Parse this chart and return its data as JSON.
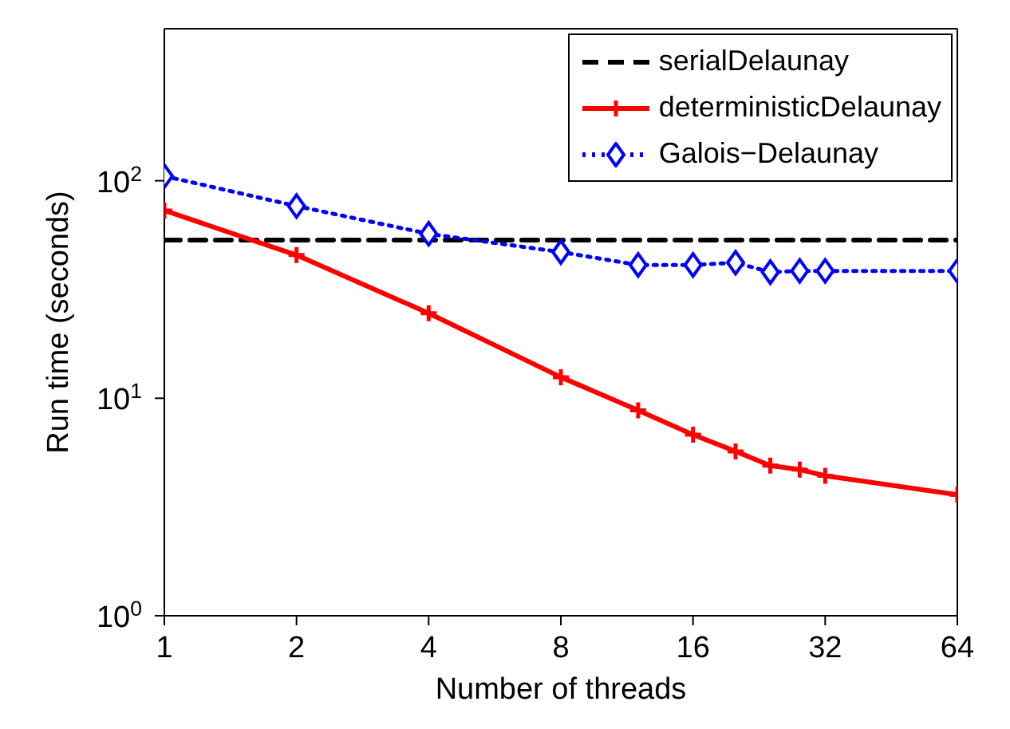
{
  "chart_data": {
    "type": "line",
    "xlabel": "Number of threads",
    "ylabel": "Run time (seconds)",
    "log": "xy",
    "legend": "top right",
    "xlim": [
      1,
      64
    ],
    "xticks": [
      1,
      2,
      4,
      8,
      16,
      32,
      64
    ],
    "ylim": [
      1,
      500
    ],
    "yticks": [
      {
        "value": 1,
        "label": "10$^{0}$"
      },
      {
        "value": 10,
        "label": "10$^{1}$"
      },
      {
        "value": 100,
        "label": "10$^{2}$"
      }
    ],
    "series": [
      {
        "name": "serialDelaunay",
        "color": "#000000",
        "x": [
          1,
          64
        ],
        "values": [
          53.4,
          53.4
        ],
        "line_style": "dashed",
        "marker": "none"
      },
      {
        "name": "deterministicDelaunay",
        "color": "#ff0000",
        "x": [
          1,
          2,
          4,
          8,
          12,
          16,
          20,
          24,
          28,
          32,
          64
        ],
        "values": [
          73,
          45.5,
          24.6,
          12.5,
          8.8,
          6.8,
          5.7,
          4.9,
          4.7,
          4.4,
          3.6
        ],
        "line_style": "solid",
        "marker": "cross"
      },
      {
        "name": "Galois−Delaunay",
        "color": "#0000ff",
        "x": [
          1,
          2,
          4,
          8,
          12,
          16,
          20,
          24,
          28,
          32,
          64
        ],
        "values": [
          105,
          76.5,
          57,
          47,
          41,
          41,
          42,
          38,
          38.5,
          38.5,
          38.5
        ],
        "line_style": "dotted",
        "marker": "diamond"
      }
    ]
  }
}
